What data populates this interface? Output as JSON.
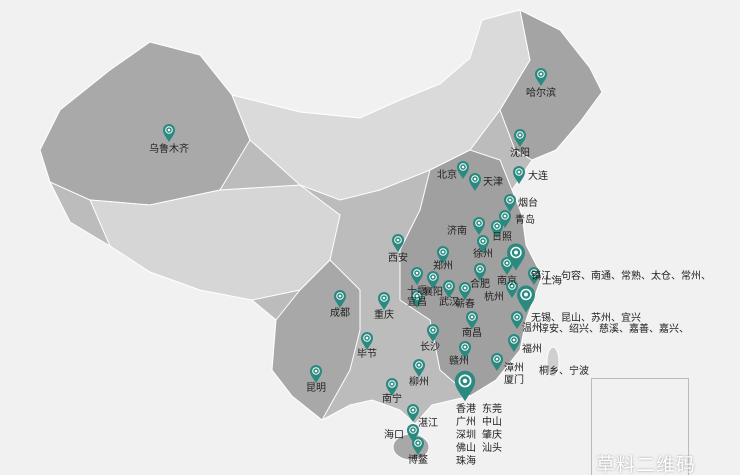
{
  "map": {
    "colors": {
      "pin": "#2a8a80",
      "land_dark": "#a3a3a3",
      "land_mid": "#bcbcbc",
      "land_light": "#d9d9d9",
      "background": "#f1f1f1",
      "border": "#ffffff"
    },
    "icon": "map-pin-icon",
    "cities": [
      "哈尔滨",
      "乌鲁木齐",
      "沈阳",
      "北京",
      "天津",
      "大连",
      "烟台",
      "青岛",
      "济南",
      "日照",
      "西安",
      "徐州",
      "郑州",
      "南京",
      "上海",
      "合肥",
      "十堰",
      "宜昌",
      "襄阳",
      "武汉",
      "蕲春",
      "杭州",
      "成都",
      "重庆",
      "温州",
      "南昌",
      "长沙",
      "福州",
      "毕节",
      "赣州",
      "漳州",
      "厦门",
      "柳州",
      "昆明",
      "南宁",
      "湛江",
      "海口",
      "博鳌"
    ],
    "groups": {
      "jiangsu": {
        "line1": "镇江、句容、南通、常熟、太仓、常州、",
        "line2": "无锡、昆山、苏州、宜兴"
      },
      "zhejiang": {
        "line1": "淳安、绍兴、慈溪、嘉善、嘉兴、",
        "line2": "桐乡、宁波"
      },
      "guangdong": [
        "香港",
        "东莞",
        "广州",
        "中山",
        "深圳",
        "肇庆",
        "佛山",
        "汕头",
        "珠海"
      ]
    }
  },
  "watermark": "草料二维码"
}
